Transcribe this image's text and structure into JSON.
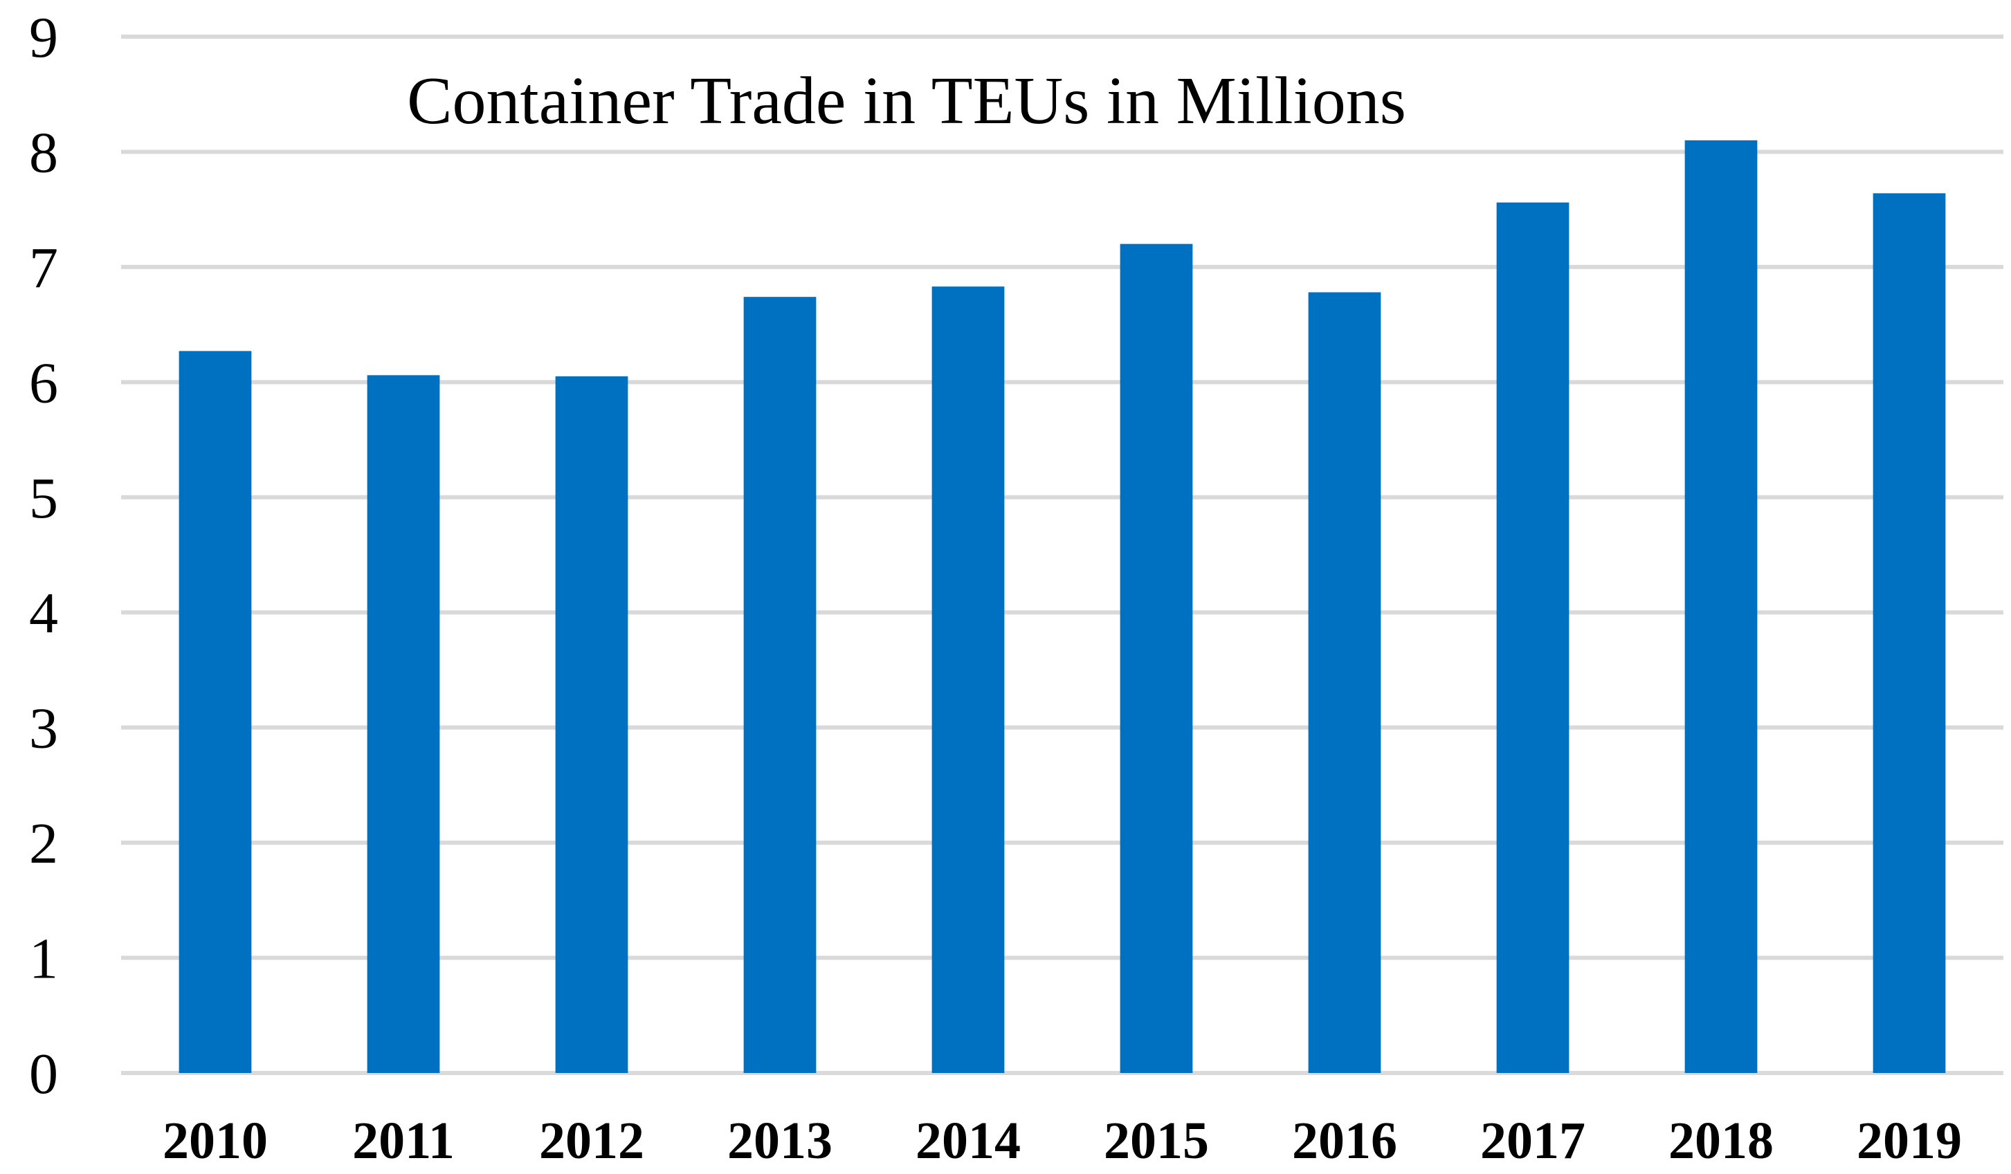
{
  "chart_data": {
    "type": "bar",
    "title": "Container Trade in TEUs in Millions",
    "xlabel": "",
    "ylabel": "",
    "categories": [
      "2010",
      "2011",
      "2012",
      "2013",
      "2014",
      "2015",
      "2016",
      "2017",
      "2018",
      "2019"
    ],
    "values": [
      6.27,
      6.06,
      6.05,
      6.74,
      6.83,
      7.2,
      6.78,
      7.56,
      8.1,
      7.64
    ],
    "ylim": [
      0,
      9
    ],
    "yticks": [
      0,
      1,
      2,
      3,
      4,
      5,
      6,
      7,
      8,
      9
    ],
    "grid": true,
    "legend": "none",
    "colors": {
      "bar": "#0070C0",
      "grid": "#D9D9D9",
      "text": "#000000"
    }
  }
}
